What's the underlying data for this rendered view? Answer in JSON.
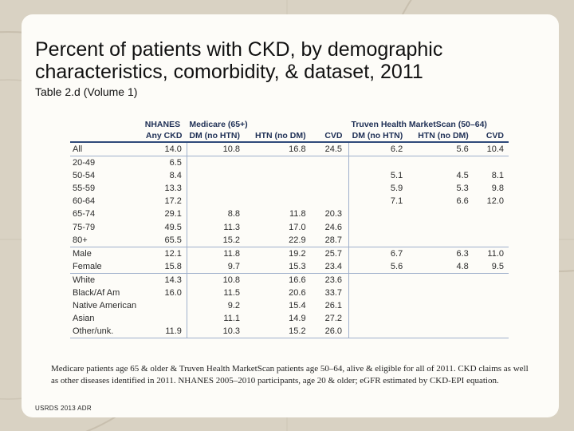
{
  "slide": {
    "title": "Percent of patients with CKD, by demographic characteristics, comorbidity, & dataset, 2011",
    "subtitle": "Table 2.d (Volume 1)",
    "note": "Medicare patients age 65 & older & Truven Health MarketScan patients age 50–64, alive & eligible for all of 2011. CKD claims as well as other diseases identified in 2011. NHANES 2005–2010 participants, age 20 & older; eGFR estimated by CKD-EPI equation.",
    "source": "USRDS 2013 ADR"
  },
  "table": {
    "groups": {
      "nhanes": "NHANES",
      "medicare": "Medicare (65+)",
      "truven": "Truven Health MarketScan (50–64)"
    },
    "columns": [
      "Any CKD",
      "DM (no HTN)",
      "HTN (no DM)",
      "CVD",
      "DM (no HTN)",
      "HTN (no DM)",
      "CVD"
    ],
    "rows": [
      {
        "label": "All",
        "v": [
          "14.0",
          "10.8",
          "16.8",
          "24.5",
          "6.2",
          "5.6",
          "10.4"
        ]
      },
      {
        "label": "20-49",
        "v": [
          "6.5",
          "",
          "",
          "",
          "",
          "",
          ""
        ]
      },
      {
        "label": "50-54",
        "v": [
          "8.4",
          "",
          "",
          "",
          "5.1",
          "4.5",
          "8.1"
        ]
      },
      {
        "label": "55-59",
        "v": [
          "13.3",
          "",
          "",
          "",
          "5.9",
          "5.3",
          "9.8"
        ]
      },
      {
        "label": "60-64",
        "v": [
          "17.2",
          "",
          "",
          "",
          "7.1",
          "6.6",
          "12.0"
        ]
      },
      {
        "label": "65-74",
        "v": [
          "29.1",
          "8.8",
          "11.8",
          "20.3",
          "",
          "",
          ""
        ]
      },
      {
        "label": "75-79",
        "v": [
          "49.5",
          "11.3",
          "17.0",
          "24.6",
          "",
          "",
          ""
        ]
      },
      {
        "label": "80+",
        "v": [
          "65.5",
          "15.2",
          "22.9",
          "28.7",
          "",
          "",
          ""
        ]
      },
      {
        "label": "Male",
        "v": [
          "12.1",
          "11.8",
          "19.2",
          "25.7",
          "6.7",
          "6.3",
          "11.0"
        ]
      },
      {
        "label": "Female",
        "v": [
          "15.8",
          "9.7",
          "15.3",
          "23.4",
          "5.6",
          "4.8",
          "9.5"
        ]
      },
      {
        "label": "White",
        "v": [
          "14.3",
          "10.8",
          "16.6",
          "23.6",
          "",
          "",
          ""
        ]
      },
      {
        "label": "Black/Af Am",
        "v": [
          "16.0",
          "11.5",
          "20.6",
          "33.7",
          "",
          "",
          ""
        ]
      },
      {
        "label": "Native American",
        "v": [
          "",
          "9.2",
          "15.4",
          "26.1",
          "",
          "",
          ""
        ]
      },
      {
        "label": "Asian",
        "v": [
          "",
          "11.1",
          "14.9",
          "27.2",
          "",
          "",
          ""
        ]
      },
      {
        "label": "Other/unk.",
        "v": [
          "11.9",
          "10.3",
          "15.2",
          "26.0",
          "",
          "",
          ""
        ]
      }
    ]
  }
}
